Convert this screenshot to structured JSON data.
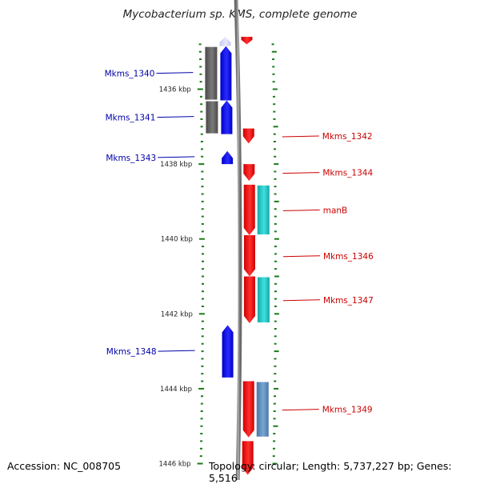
{
  "title": "Mycobacterium sp. KMS, complete genome",
  "footer": {
    "accession": "Accession: NC_008705",
    "topology": "Topology: circular; Length: 5,737,227 bp; Genes: 5,516"
  },
  "colors": {
    "forward": "#ff0000",
    "reverse": "#0000ff",
    "reverse_label": "#0000aa",
    "forward_label": "#cc0000",
    "backbone": "#888888",
    "tick": "#1a7a1a",
    "cog_gray": "#666666",
    "cog_cyan": "#20c8c8",
    "cog_steel": "#5f8fbf"
  },
  "scale": {
    "unit": "kbp",
    "range_kbp": [
      1434.7,
      1446.1
    ],
    "labels": [
      {
        "kbp": 1436,
        "text": "1436 kbp"
      },
      {
        "kbp": 1438,
        "text": "1438 kbp"
      },
      {
        "kbp": 1440,
        "text": "1440 kbp"
      },
      {
        "kbp": 1442,
        "text": "1442 kbp"
      },
      {
        "kbp": 1444,
        "text": "1444 kbp"
      },
      {
        "kbp": 1446,
        "text": "1446 kbp"
      }
    ]
  },
  "genes": [
    {
      "name": "Mkms_1340",
      "strand": "-",
      "start_kbp": 1434.85,
      "end_kbp": 1436.3,
      "cog": "gray"
    },
    {
      "name": "Mkms_1341",
      "strand": "-",
      "start_kbp": 1436.3,
      "end_kbp": 1437.2,
      "cog": "gray"
    },
    {
      "name": "Mkms_1342",
      "strand": "+",
      "start_kbp": 1437.05,
      "end_kbp": 1437.45,
      "cog": null
    },
    {
      "name": "Mkms_1343",
      "strand": "-",
      "start_kbp": 1437.65,
      "end_kbp": 1438.0,
      "cog": null
    },
    {
      "name": "Mkms_1344",
      "strand": "+",
      "start_kbp": 1438.0,
      "end_kbp": 1438.45,
      "cog": null
    },
    {
      "name": "manB",
      "strand": "+",
      "start_kbp": 1438.55,
      "end_kbp": 1439.9,
      "cog": "cyan"
    },
    {
      "name": "Mkms_1346",
      "strand": "+",
      "start_kbp": 1439.9,
      "end_kbp": 1441.0,
      "cog": null
    },
    {
      "name": "Mkms_1347",
      "strand": "+",
      "start_kbp": 1441.0,
      "end_kbp": 1442.25,
      "cog": "cyan"
    },
    {
      "name": "Mkms_1348",
      "strand": "-",
      "start_kbp": 1442.3,
      "end_kbp": 1443.7,
      "cog": null
    },
    {
      "name": "Mkms_1349",
      "strand": "+",
      "start_kbp": 1443.8,
      "end_kbp": 1445.3,
      "cog": "steel"
    },
    {
      "name": "",
      "strand": "+",
      "start_kbp": 1445.4,
      "end_kbp": 1446.3,
      "cog": null
    },
    {
      "name": "",
      "strand": "+",
      "start_kbp": 1434.6,
      "end_kbp": 1434.8,
      "cog": null
    },
    {
      "name": "",
      "strand": "-",
      "start_kbp": 1434.6,
      "end_kbp": 1434.85,
      "cog": "faded"
    }
  ]
}
